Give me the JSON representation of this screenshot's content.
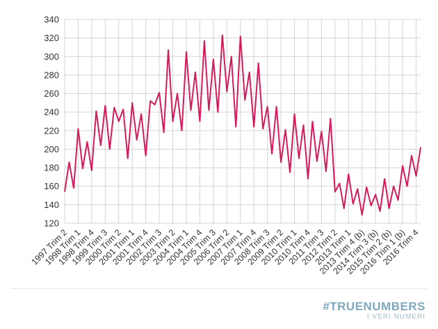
{
  "chart_data": {
    "type": "line",
    "title": "",
    "xlabel": "",
    "ylabel": "",
    "ylim": [
      120,
      340
    ],
    "yticks": [
      120,
      140,
      160,
      180,
      200,
      220,
      240,
      260,
      280,
      300,
      320,
      340
    ],
    "grid": true,
    "legend": "none",
    "x_tick_labels": [
      "1997 Trim 2",
      "1998 Trim 1",
      "1998 Trim 4",
      "1999 Trim 3",
      "2000 Trim 2",
      "2001 Trim 1",
      "2001 Trim 4",
      "2002 Trim 3",
      "2003 Trim 2",
      "2004 Trim 1",
      "2004 Trim 4",
      "2005 Trim 3",
      "2006 Trim 2",
      "2007 Trim 1",
      "2007 Trim 4",
      "2008 Trim 3",
      "2009 Trim 2",
      "2010 Trim 1",
      "2010 Trim 4",
      "2011 Trim 3",
      "2012 Trim 2",
      "2013 Trim 1",
      "2013 Trim 4 (b)",
      "2014 Trim 3 (b)",
      "2015 Trim 2 (b)",
      "2016 Trim 1 (b)",
      "2016 Trim 4"
    ],
    "tick_every": 3,
    "series": [
      {
        "color": "#d6195a",
        "values": [
          154,
          186,
          158,
          222,
          179,
          208,
          177,
          241,
          204,
          247,
          200,
          245,
          230,
          243,
          190,
          250,
          210,
          238,
          193,
          252,
          248,
          261,
          218,
          307,
          230,
          260,
          220,
          305,
          242,
          283,
          230,
          317,
          242,
          297,
          240,
          323,
          262,
          300,
          224,
          322,
          253,
          283,
          224,
          293,
          222,
          246,
          195,
          246,
          186,
          221,
          175,
          238,
          190,
          226,
          168,
          230,
          187,
          219,
          176,
          233,
          154,
          163,
          136,
          173,
          141,
          157,
          129,
          159,
          139,
          151,
          133,
          168,
          136,
          160,
          145,
          182,
          160,
          193,
          171,
          202
        ]
      }
    ]
  },
  "brand": {
    "name": "#TRUENUMBERS",
    "tagline": "I VERI NUMERI"
  }
}
